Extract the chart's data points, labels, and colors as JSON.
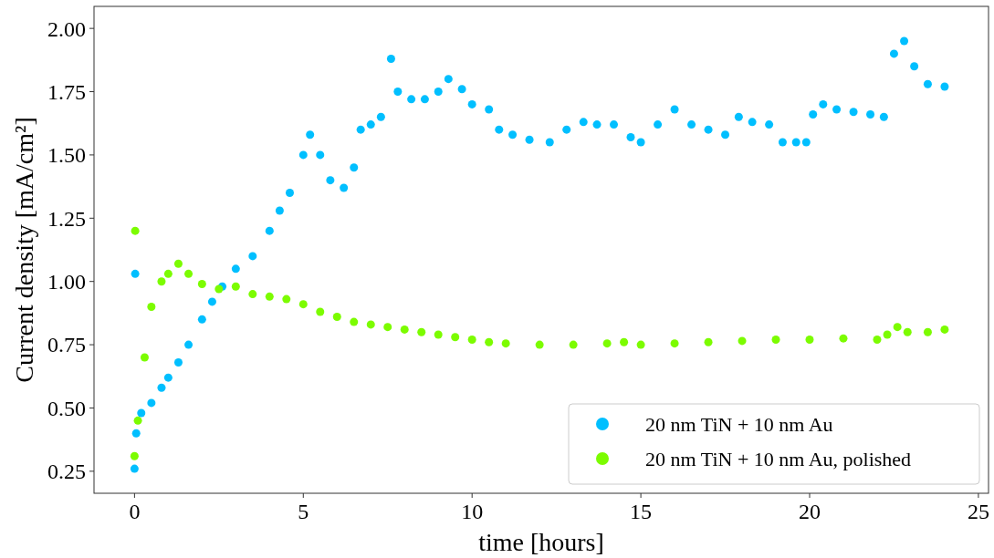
{
  "chart_data": {
    "type": "scatter",
    "xlabel": "time [hours]",
    "ylabel": "Current density [mA/cm²]",
    "xlim": [
      -1.2,
      25.3
    ],
    "ylim": [
      0.163,
      2.087
    ],
    "xticks": [
      0,
      5,
      10,
      15,
      20,
      25
    ],
    "yticks": [
      {
        "value": 0.25,
        "label": "0.25"
      },
      {
        "value": 0.5,
        "label": "0.50"
      },
      {
        "value": 0.75,
        "label": "0.75"
      },
      {
        "value": 1,
        "label": "1.00"
      },
      {
        "value": 1.25,
        "label": "1.25"
      },
      {
        "value": 1.5,
        "label": "1.50"
      },
      {
        "value": 1.75,
        "label": "1.75"
      },
      {
        "value": 2,
        "label": "2.00"
      }
    ],
    "grid": false,
    "legend": "bottom right",
    "marker": "circle",
    "series": [
      {
        "name": "20 nm TiN + 10 nm Au",
        "color": "#00bfff",
        "x": [
          0,
          0.02,
          0.05,
          0.2,
          0.5,
          0.8,
          1.0,
          1.3,
          1.6,
          2.0,
          2.3,
          2.6,
          3,
          3.5,
          4,
          4.3,
          4.6,
          5.0,
          5.2,
          5.5,
          5.8,
          6.2,
          6.5,
          6.7,
          7.0,
          7.3,
          7.6,
          7.8,
          8.2,
          8.6,
          9.0,
          9.3,
          9.7,
          10.0,
          10.5,
          10.8,
          11.2,
          11.7,
          12.3,
          12.8,
          13.3,
          13.7,
          14.2,
          14.7,
          15.0,
          15.5,
          16.0,
          16.5,
          17.0,
          17.5,
          17.9,
          18.3,
          18.8,
          19.2,
          19.6,
          19.9,
          20.1,
          20.4,
          20.8,
          21.3,
          21.8,
          22.2,
          22.5,
          22.8,
          23.1,
          23.5,
          24.0
        ],
        "values": [
          0.26,
          1.03,
          0.4,
          0.48,
          0.52,
          0.58,
          0.62,
          0.68,
          0.75,
          0.85,
          0.92,
          0.98,
          1.05,
          1.1,
          1.2,
          1.28,
          1.35,
          1.5,
          1.58,
          1.5,
          1.4,
          1.37,
          1.45,
          1.6,
          1.62,
          1.65,
          1.88,
          1.75,
          1.72,
          1.72,
          1.75,
          1.8,
          1.76,
          1.7,
          1.68,
          1.6,
          1.58,
          1.56,
          1.55,
          1.6,
          1.63,
          1.62,
          1.62,
          1.57,
          1.55,
          1.62,
          1.68,
          1.62,
          1.6,
          1.58,
          1.65,
          1.63,
          1.62,
          1.55,
          1.55,
          1.55,
          1.66,
          1.7,
          1.68,
          1.67,
          1.66,
          1.65,
          1.9,
          1.95,
          1.85,
          1.78,
          1.77
        ]
      },
      {
        "name": "20 nm TiN + 10 nm Au, polished",
        "color": "#7cfc00",
        "x": [
          0,
          0.02,
          0.1,
          0.3,
          0.5,
          0.8,
          1.0,
          1.3,
          1.6,
          2.0,
          2.5,
          3.0,
          3.5,
          4.0,
          4.5,
          5.0,
          5.5,
          6.0,
          6.5,
          7.0,
          7.5,
          8.0,
          8.5,
          9.0,
          9.5,
          10,
          10.5,
          11,
          12,
          13,
          14,
          14.5,
          15,
          16,
          17,
          18,
          19,
          20,
          21,
          22,
          22.3,
          22.6,
          22.9,
          23.5,
          24
        ],
        "values": [
          0.31,
          1.2,
          0.45,
          0.7,
          0.9,
          1.0,
          1.03,
          1.07,
          1.03,
          0.99,
          0.97,
          0.98,
          0.95,
          0.94,
          0.93,
          0.91,
          0.88,
          0.86,
          0.84,
          0.83,
          0.82,
          0.81,
          0.8,
          0.79,
          0.78,
          0.77,
          0.76,
          0.755,
          0.75,
          0.75,
          0.755,
          0.76,
          0.75,
          0.755,
          0.76,
          0.765,
          0.77,
          0.77,
          0.775,
          0.77,
          0.79,
          0.82,
          0.8,
          0.8,
          0.81
        ]
      }
    ]
  }
}
